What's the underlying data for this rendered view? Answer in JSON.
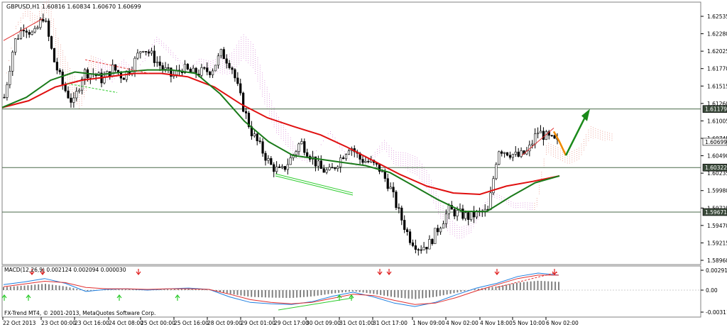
{
  "main": {
    "header": "GBPUSD,H1  1.60816 1.60834 1.60670 1.60699",
    "y_ticks": [
      "1.62535",
      "1.62280",
      "1.62025",
      "1.61770",
      "1.61515",
      "1.61260",
      "1.61005",
      "1.60745",
      "1.60490",
      "1.60235",
      "1.59980",
      "1.59725",
      "1.59470",
      "1.59215",
      "1.58960"
    ],
    "price_labels": [
      {
        "text": "1.61179",
        "value": 1.61179,
        "style": "dark"
      },
      {
        "text": "1.60699",
        "value": 1.60699,
        "style": "light"
      },
      {
        "text": "1.60322",
        "value": 1.60322,
        "style": "dark"
      },
      {
        "text": "1.59671",
        "value": 1.59671,
        "style": "dark"
      }
    ],
    "h_lines": [
      1.61179,
      1.60322,
      1.59671
    ]
  },
  "macd": {
    "header": "MACD(12,26,9) 0.002124 0.002094 0.000030",
    "y_ticks": [
      "0.002915",
      "0.00",
      "-0.003110"
    ]
  },
  "x_ticks": [
    "22 Oct 2013",
    "23 Oct 00:00",
    "23 Oct 16:00",
    "24 Oct 08:00",
    "25 Oct 00:00",
    "25 Oct 16:00",
    "28 Oct 09:00",
    "29 Oct 01:00",
    "29 Oct 17:00",
    "30 Oct 09:00",
    "31 Oct 01:00",
    "31 Oct 17:00",
    "1 Nov 09:00",
    "4 Nov 02:00",
    "4 Nov 18:00",
    "5 Nov 10:00",
    "6 Nov 02:00"
  ],
  "footer": "FX-Trend MT4, © 2001-2013, MetaQuotes Software Corp.",
  "colors": {
    "up": "#000000",
    "ma_fast": "#1a7a1a",
    "ma_slow": "#e01010",
    "cloud_bull": "#e07060",
    "cloud_bear": "#cc66cc",
    "macd_line": "#1f7fe0",
    "signal_line": "#e03030",
    "arrow_green": "#1a8a1a",
    "arrow_orange": "#f08a00"
  },
  "chart_data": [
    {
      "type": "candlestick",
      "title": "GBPUSD,H1",
      "ylim": [
        1.5896,
        1.6266
      ],
      "price_path": [
        1.6135,
        1.6215,
        1.624,
        1.6225,
        1.6255,
        1.619,
        1.615,
        1.6125,
        1.6172,
        1.617,
        1.616,
        1.6178,
        1.6165,
        1.6182,
        1.621,
        1.6195,
        1.6178,
        1.6165,
        1.6178,
        1.617,
        1.6172,
        1.6175,
        1.62,
        1.6182,
        1.613,
        1.6085,
        1.606,
        1.6035,
        1.6025,
        1.6045,
        1.607,
        1.605,
        1.603,
        1.6025,
        1.6045,
        1.6065,
        1.6045,
        1.604,
        1.603,
        1.6005,
        1.5965,
        1.593,
        1.5915,
        1.592,
        1.5945,
        1.597,
        1.5965,
        1.596,
        1.5965,
        1.5968,
        1.606,
        1.6055,
        1.6048,
        1.6055,
        1.6085,
        1.6076,
        1.6068
      ],
      "series": [
        {
          "name": "Fast MA",
          "values": [
            1.612,
            1.6135,
            1.616,
            1.6172,
            1.6168,
            1.6172,
            1.6175,
            1.6175,
            1.617,
            1.614,
            1.61,
            1.607,
            1.605,
            1.6045,
            1.604,
            1.6035,
            1.6025,
            1.6005,
            1.5985,
            1.5968,
            1.5968,
            1.599,
            1.601,
            1.602
          ]
        },
        {
          "name": "Slow MA",
          "values": [
            1.612,
            1.613,
            1.615,
            1.616,
            1.6165,
            1.617,
            1.617,
            1.6165,
            1.615,
            1.6125,
            1.6105,
            1.6092,
            1.608,
            1.6062,
            1.6042,
            1.6022,
            1.6005,
            1.5995,
            1.5993,
            1.6005,
            1.6012,
            1.602
          ]
        }
      ]
    },
    {
      "type": "line",
      "title": "MACD(12,26,9)",
      "ylim": [
        -0.00311,
        0.002915
      ],
      "series": [
        {
          "name": "MACD",
          "values": [
            0.0008,
            0.0012,
            0.0017,
            0.001,
            -0.0002,
            0.0001,
            0.0002,
            0.0,
            0.0002,
            0.0003,
            0.0001,
            -0.001,
            -0.0018,
            -0.002,
            -0.0021,
            -0.0017,
            -0.0009,
            -0.0003,
            -0.001,
            -0.0019,
            -0.0024,
            -0.0018,
            -0.0007,
            0.0003,
            0.001,
            0.002,
            0.0025,
            0.0022
          ]
        },
        {
          "name": "Signal",
          "values": [
            0.0005,
            0.0009,
            0.0013,
            0.0011,
            0.0004,
            0.0002,
            0.0002,
            0.0001,
            0.0002,
            0.0002,
            0.0001,
            -0.0006,
            -0.0014,
            -0.0018,
            -0.002,
            -0.0018,
            -0.0012,
            -0.0006,
            -0.0008,
            -0.0015,
            -0.0021,
            -0.0019,
            -0.0011,
            -0.0001,
            0.0008,
            0.0017,
            0.0022,
            0.0022
          ]
        }
      ]
    }
  ]
}
